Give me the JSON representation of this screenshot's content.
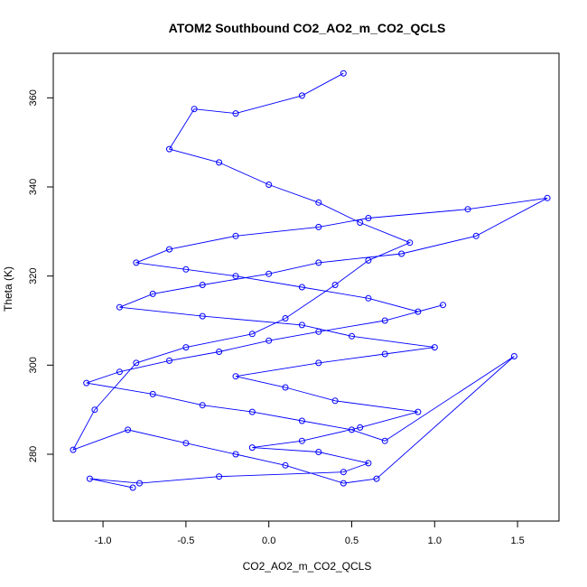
{
  "chart_data": {
    "type": "scatter",
    "title": "ATOM2 Southbound CO2_AO2_m_CO2_QCLS",
    "xlabel": "CO2_AO2_m_CO2_QCLS",
    "ylabel": "Theta (K)",
    "xlim": [
      -1.3,
      1.75
    ],
    "ylim": [
      265,
      370
    ],
    "x_ticks": [
      -1.0,
      -0.5,
      0.0,
      0.5,
      1.0,
      1.5
    ],
    "x_tick_labels": [
      "-1.0",
      "-0.5",
      "0.0",
      "0.5",
      "1.0",
      "1.5"
    ],
    "y_ticks": [
      280,
      300,
      320,
      340,
      360
    ],
    "y_tick_labels": [
      "280",
      "300",
      "320",
      "340",
      "360"
    ],
    "series": [
      {
        "name": "CO2_AO2_m_CO2_QCLS",
        "color": "#0000ff",
        "marker": "open-circle",
        "connected": true,
        "x": [
          -0.82,
          -1.08,
          -0.78,
          -0.3,
          0.45,
          0.6,
          0.3,
          -0.1,
          0.2,
          0.55,
          0.9,
          0.4,
          0.1,
          -0.2,
          0.3,
          0.7,
          1.0,
          0.5,
          0.2,
          -0.4,
          -0.9,
          -0.7,
          -0.4,
          0.0,
          0.3,
          0.8,
          1.25,
          1.68,
          1.2,
          0.6,
          0.3,
          -0.2,
          -0.6,
          -0.8,
          -0.5,
          -0.2,
          0.2,
          0.6,
          0.9,
          1.05,
          0.7,
          0.3,
          0.0,
          -0.3,
          -0.6,
          -0.9,
          -1.1,
          -0.7,
          -0.4,
          -0.1,
          0.2,
          0.5,
          0.7,
          1.48,
          0.65,
          0.45,
          0.1,
          -0.2,
          -0.5,
          -0.85,
          -1.18,
          -1.05,
          -0.8,
          -0.5,
          -0.1,
          0.1,
          0.4,
          0.6,
          0.85,
          0.55,
          0.3,
          0.0,
          -0.3,
          -0.6,
          -0.45,
          -0.2,
          0.2,
          0.45
        ],
        "y": [
          272.5,
          274.5,
          273.5,
          275.0,
          276.0,
          278.0,
          280.5,
          281.5,
          283.0,
          286.0,
          289.5,
          292.0,
          295.0,
          297.5,
          300.5,
          302.5,
          304.0,
          306.5,
          309.0,
          311.0,
          313.0,
          316.0,
          318.0,
          320.5,
          323.0,
          325.0,
          329.0,
          337.5,
          335.0,
          333.0,
          331.0,
          329.0,
          326.0,
          323.0,
          321.5,
          320.0,
          317.5,
          315.0,
          312.0,
          313.5,
          310.0,
          307.5,
          305.5,
          303.0,
          301.0,
          298.5,
          296.0,
          293.5,
          291.0,
          289.5,
          287.5,
          285.5,
          283.0,
          302.0,
          274.5,
          273.5,
          277.5,
          280.0,
          282.5,
          285.5,
          281.0,
          290.0,
          300.5,
          304.0,
          307.0,
          310.5,
          318.0,
          323.5,
          327.5,
          332.0,
          336.5,
          340.5,
          345.5,
          348.5,
          357.5,
          356.5,
          360.5,
          365.5
        ]
      }
    ]
  }
}
